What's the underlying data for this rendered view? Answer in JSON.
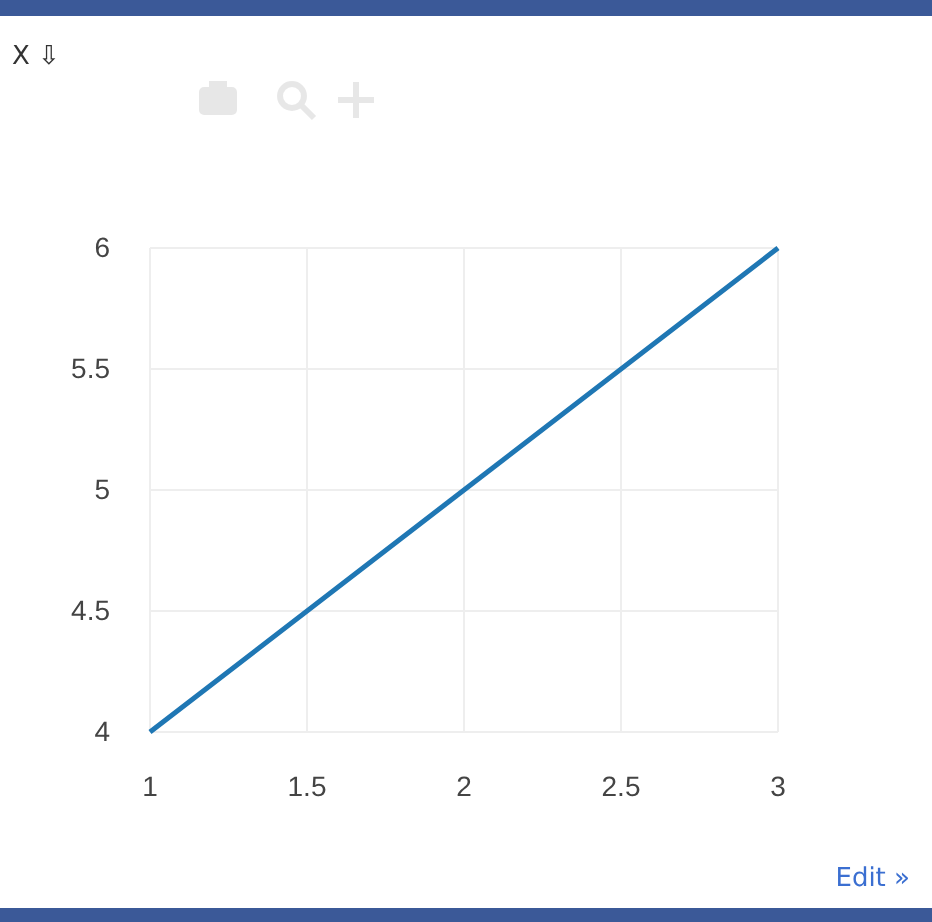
{
  "chart_data": {
    "type": "line",
    "x": [
      1,
      2,
      3
    ],
    "series": [
      {
        "color": "#1f77b4",
        "values": [
          4,
          5,
          6
        ]
      }
    ],
    "xlim": [
      1,
      3
    ],
    "xticks": [
      1,
      1.5,
      2,
      2.5,
      3
    ],
    "ylim": [
      4,
      6
    ],
    "yticks": [
      4,
      4.5,
      5,
      5.5,
      6
    ],
    "grid": true,
    "marker": "none",
    "line_style": "solid",
    "annotations": [
      "X ⇩",
      "Edit »"
    ]
  }
}
